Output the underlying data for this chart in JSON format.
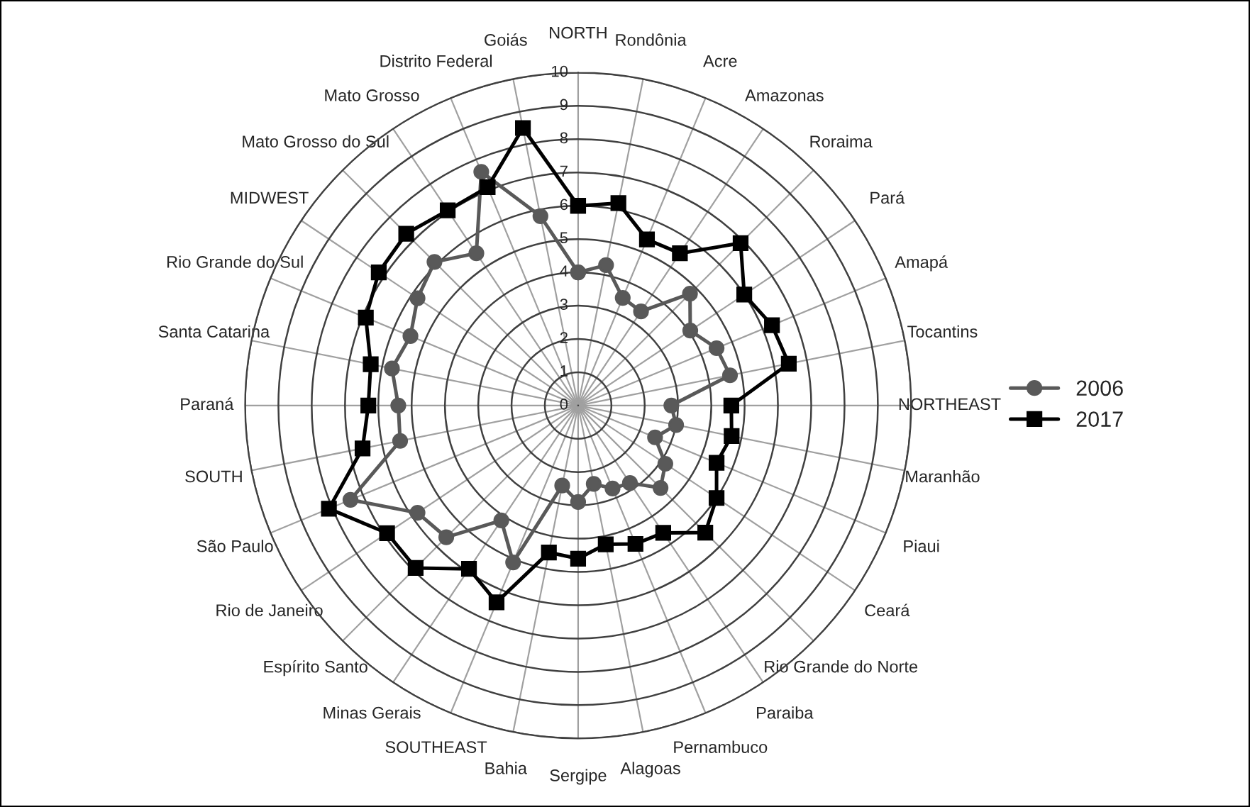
{
  "chart_data": {
    "type": "radar",
    "categories": [
      "NORTH",
      "Rondônia",
      "Acre",
      "Amazonas",
      "Roraima",
      "Pará",
      "Amapá",
      "Tocantins",
      "NORTHEAST",
      "Maranhão",
      "Piaui",
      "Ceará",
      "Rio Grande do Norte",
      "Paraiba",
      "Pernambuco",
      "Alagoas",
      "Sergipe",
      "Bahia",
      "SOUTHEAST",
      "Minas Gerais",
      "Espírito Santo",
      "Rio de Janeiro",
      "São Paulo",
      "SOUTH",
      "Paraná",
      "Santa Catarina",
      "Rio Grande do Sul",
      "MIDWEST",
      "Mato Grosso do Sul",
      "Mato Grosso",
      "Distrito Federal",
      "Goiás"
    ],
    "series": [
      {
        "name": "2006",
        "color": "#595959",
        "marker": "circle",
        "values": [
          4.0,
          4.3,
          3.5,
          3.4,
          4.75,
          4.05,
          4.5,
          4.65,
          2.8,
          3.0,
          2.5,
          3.15,
          3.5,
          2.8,
          2.7,
          2.4,
          2.9,
          2.45,
          5.1,
          4.15,
          5.6,
          5.8,
          7.4,
          5.45,
          5.4,
          5.7,
          5.45,
          5.8,
          6.1,
          5.5,
          7.6,
          5.8
        ]
      },
      {
        "name": "2017",
        "color": "#000000",
        "marker": "square",
        "values": [
          6.0,
          6.2,
          5.4,
          5.5,
          6.9,
          6.0,
          6.3,
          6.45,
          4.6,
          4.7,
          4.5,
          5.0,
          5.4,
          4.6,
          4.5,
          4.25,
          4.6,
          4.5,
          6.4,
          5.9,
          6.9,
          6.9,
          8.1,
          6.6,
          6.3,
          6.35,
          6.9,
          7.2,
          7.3,
          7.05,
          7.1,
          8.5
        ]
      }
    ],
    "ylim": [
      0,
      10
    ],
    "yticks": [
      0,
      1,
      2,
      3,
      4,
      5,
      6,
      7,
      8,
      9,
      10
    ],
    "grid": true,
    "legend": "right",
    "line_style": "solid"
  }
}
